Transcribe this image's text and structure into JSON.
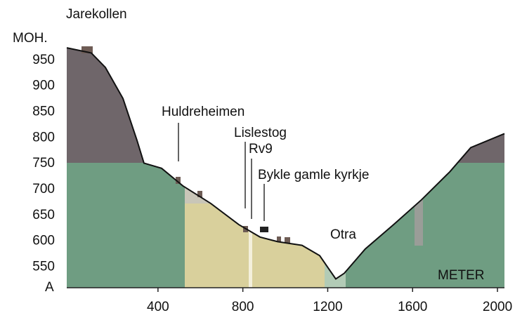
{
  "chart_data": {
    "type": "area",
    "title": "Jarekollen",
    "y_axis_label": "MOH.",
    "x_axis_label": "METER",
    "bottom_label": "A",
    "annotations": [
      "Huldreheimen",
      "Lislestog",
      "Rv9",
      "Bykle gamle kyrkje",
      "Otra"
    ],
    "x": [
      -30,
      86,
      152,
      235,
      301,
      334,
      417,
      517,
      649,
      781,
      881,
      964,
      1079,
      1162,
      1238,
      1278,
      1377,
      1510,
      1642,
      1775,
      1874,
      2033
    ],
    "values": [
      974,
      964,
      936,
      876,
      795,
      751,
      741,
      707,
      673,
      632,
      608,
      599,
      592,
      572,
      527,
      538,
      585,
      632,
      680,
      734,
      781,
      808
    ],
    "color": "#111111",
    "xlim": [
      -30,
      2033
    ],
    "xticks": [
      400,
      800,
      1200,
      1600,
      2000
    ],
    "ylim": [
      510,
      985
    ],
    "yticks": [
      550,
      600,
      650,
      700,
      750,
      800,
      850,
      900,
      950
    ]
  }
}
